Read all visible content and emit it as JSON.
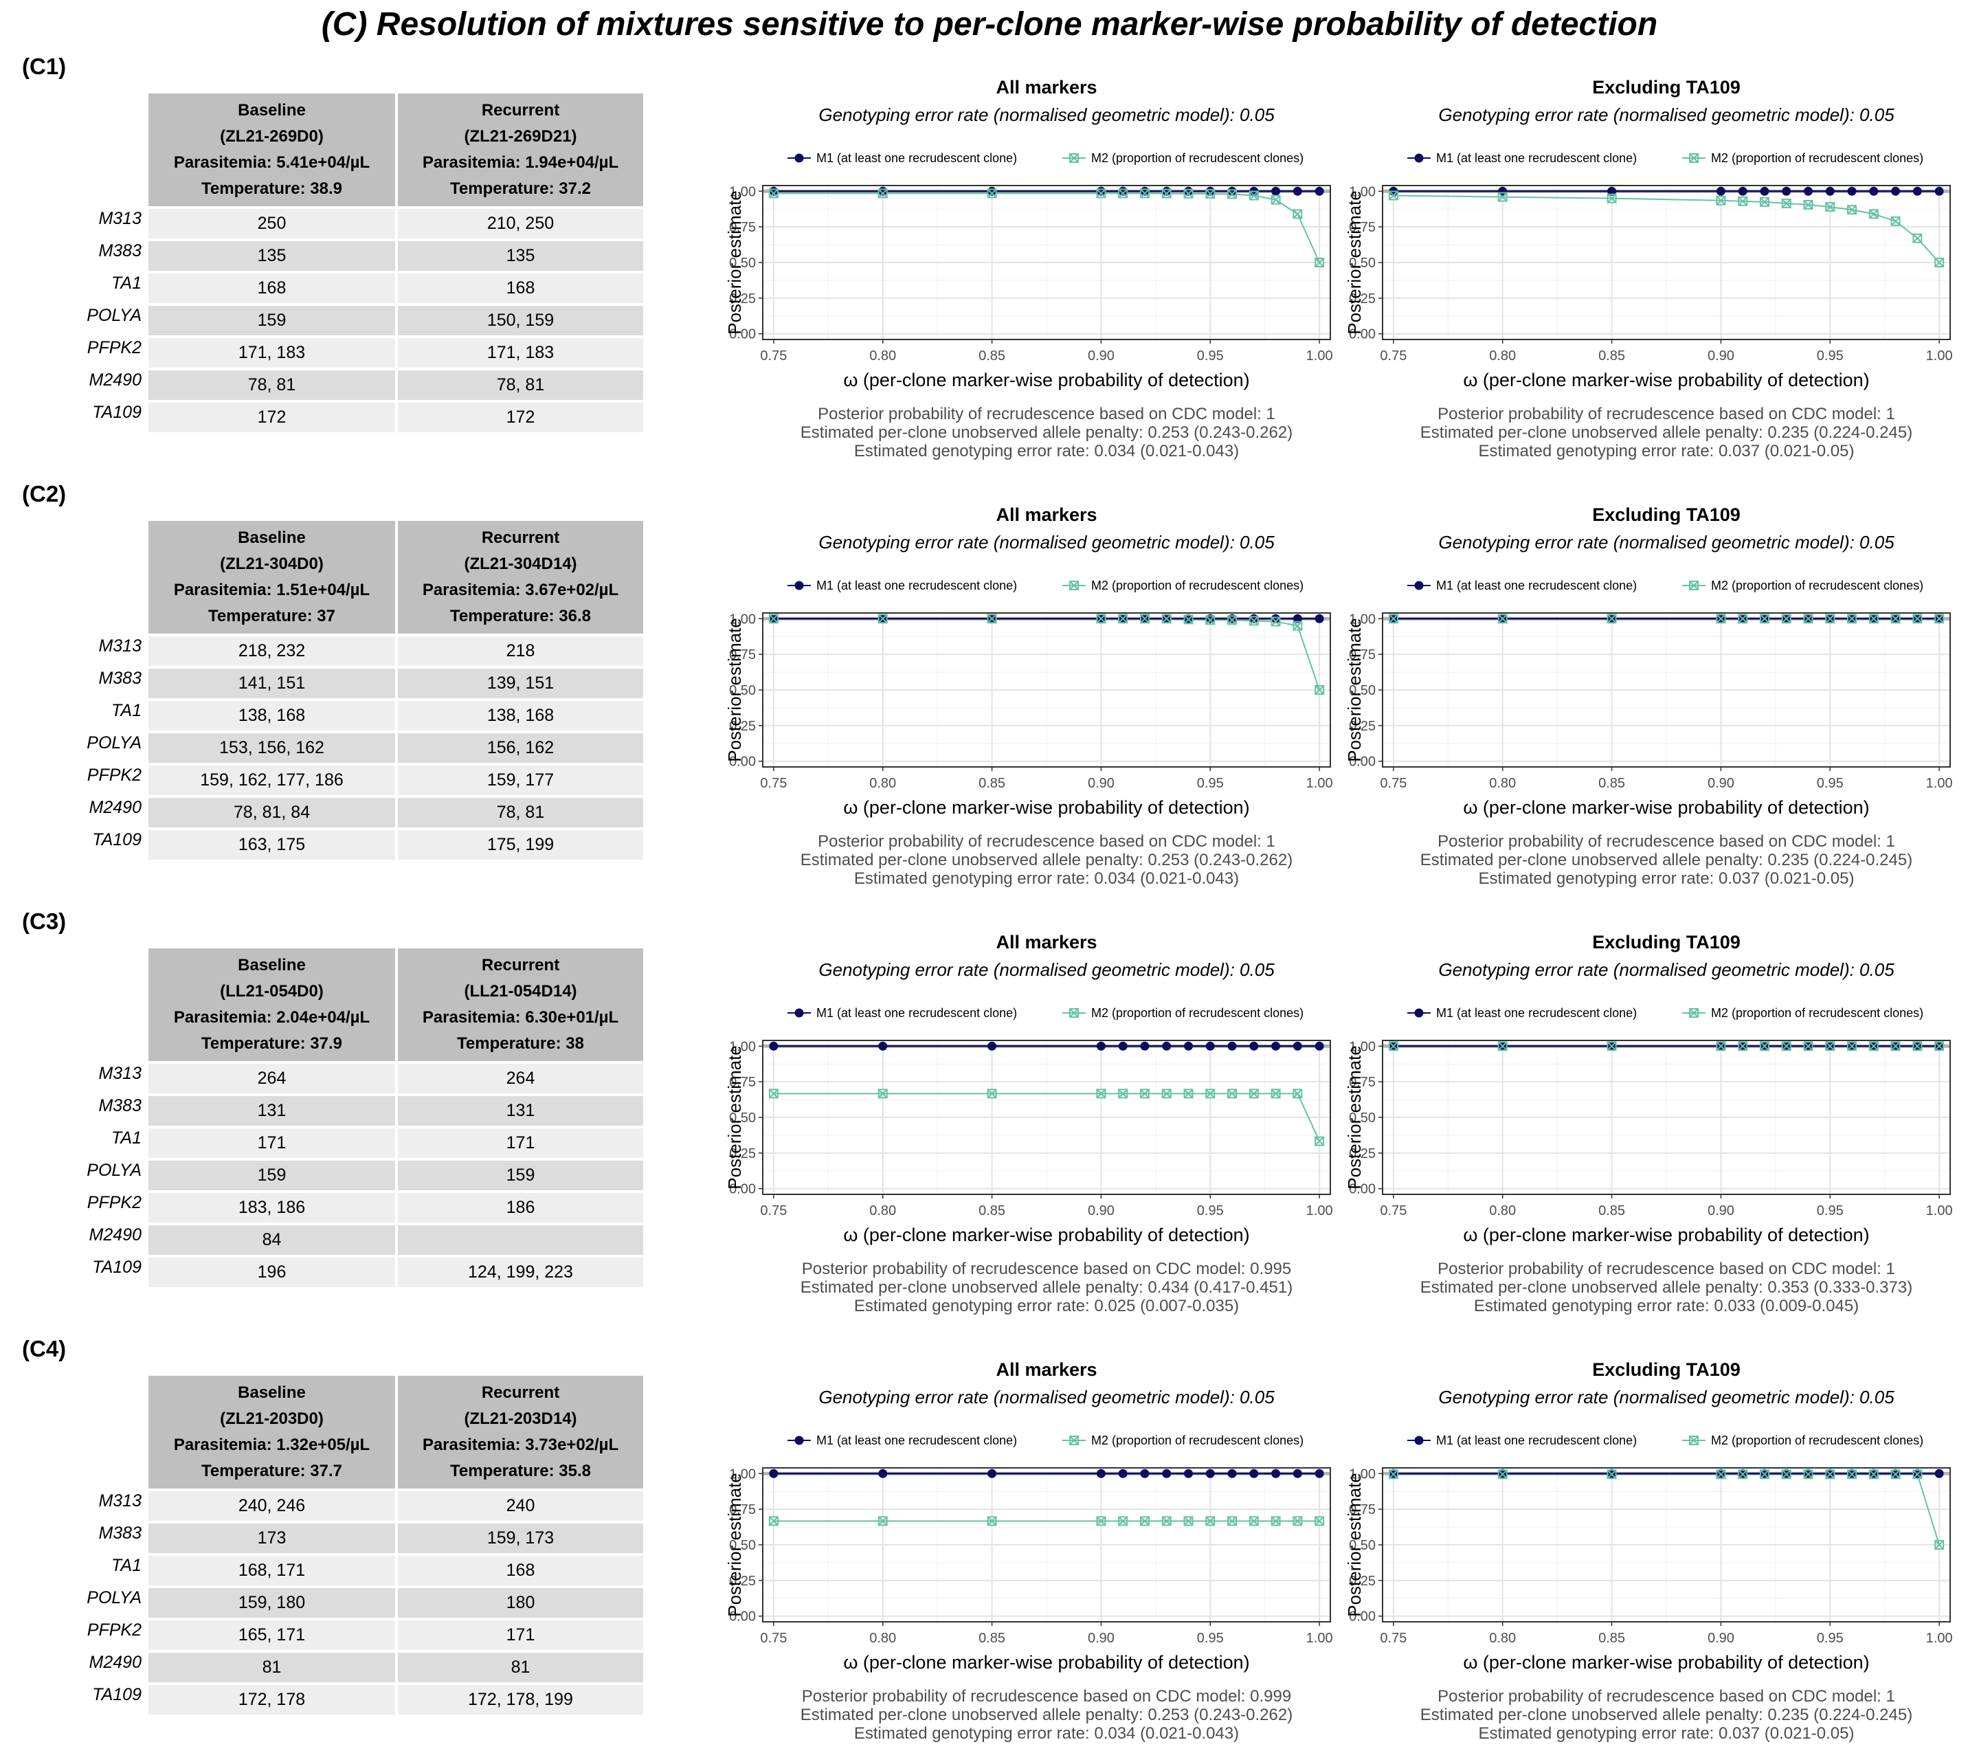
{
  "main_title": "(C) Resolution of mixtures sensitive to per-clone marker-wise probability of detection",
  "legend": {
    "m1": "M1 (at least one recrudescent clone)",
    "m2": "M2 (proportion of recrudescent clones)"
  },
  "colors": {
    "m1": "#0d0b60",
    "m2": "#66c2a5",
    "hline": "#b3b3b3"
  },
  "axis": {
    "xlabel": "ω (per-clone marker-wise probability of detection)",
    "ylabel": "Posterior estimate",
    "xticks": [
      "0.75",
      "0.80",
      "0.85",
      "0.90",
      "0.95",
      "1.00"
    ],
    "yticks": [
      "0.00",
      "0.25",
      "0.50",
      "0.75",
      "1.00"
    ]
  },
  "markers": [
    "M313",
    "M383",
    "TA1",
    "POLYA",
    "PFPK2",
    "M2490",
    "TA109"
  ],
  "panels": [
    {
      "label": "(C1)",
      "baseline": {
        "lines": [
          "Baseline",
          "(ZL21-269D0)",
          "Parasitemia: 5.41e+04/µL",
          "Temperature: 38.9"
        ]
      },
      "recurrent": {
        "lines": [
          "Recurrent",
          "(ZL21-269D21)",
          "Parasitemia: 1.94e+04/µL",
          "Temperature: 37.2"
        ]
      },
      "rows": [
        [
          "250",
          "210, 250"
        ],
        [
          "135",
          "135"
        ],
        [
          "168",
          "168"
        ],
        [
          "159",
          "150, 159"
        ],
        [
          "171, 183",
          "171, 183"
        ],
        [
          "78, 81",
          "78, 81"
        ],
        [
          "172",
          "172"
        ]
      ],
      "plots": [
        {
          "title": "All markers",
          "subtitle": "Genotyping error rate (normalised geometric model): 0.05",
          "stats": [
            "Posterior probability of recrudescence based on CDC model: 1",
            "Estimated per-clone unobserved allele penalty: 0.253 (0.243-0.262)",
            "Estimated genotyping error rate: 0.034 (0.021-0.043)"
          ]
        },
        {
          "title": "Excluding TA109",
          "subtitle": "Genotyping error rate (normalised geometric model): 0.05",
          "stats": [
            "Posterior probability of recrudescence based on CDC model: 1",
            "Estimated per-clone unobserved allele penalty: 0.235 (0.224-0.245)",
            "Estimated genotyping error rate: 0.037 (0.021-0.05)"
          ]
        }
      ]
    },
    {
      "label": "(C2)",
      "baseline": {
        "lines": [
          "Baseline",
          "(ZL21-304D0)",
          "Parasitemia: 1.51e+04/µL",
          "Temperature: 37"
        ]
      },
      "recurrent": {
        "lines": [
          "Recurrent",
          "(ZL21-304D14)",
          "Parasitemia: 3.67e+02/µL",
          "Temperature: 36.8"
        ]
      },
      "rows": [
        [
          "218, 232",
          "218"
        ],
        [
          "141, 151",
          "139, 151"
        ],
        [
          "138, 168",
          "138, 168"
        ],
        [
          "153, 156, 162",
          "156, 162"
        ],
        [
          "159, 162, 177, 186",
          "159, 177"
        ],
        [
          "78, 81, 84",
          "78, 81"
        ],
        [
          "163, 175",
          "175, 199"
        ]
      ],
      "plots": [
        {
          "title": "All markers",
          "subtitle": "Genotyping error rate (normalised geometric model): 0.05",
          "stats": [
            "Posterior probability of recrudescence based on CDC model: 1",
            "Estimated per-clone unobserved allele penalty: 0.253 (0.243-0.262)",
            "Estimated genotyping error rate: 0.034 (0.021-0.043)"
          ]
        },
        {
          "title": "Excluding TA109",
          "subtitle": "Genotyping error rate (normalised geometric model): 0.05",
          "stats": [
            "Posterior probability of recrudescence based on CDC model: 1",
            "Estimated per-clone unobserved allele penalty: 0.235 (0.224-0.245)",
            "Estimated genotyping error rate: 0.037 (0.021-0.05)"
          ]
        }
      ]
    },
    {
      "label": "(C3)",
      "baseline": {
        "lines": [
          "Baseline",
          "(LL21-054D0)",
          "Parasitemia: 2.04e+04/µL",
          "Temperature: 37.9"
        ]
      },
      "recurrent": {
        "lines": [
          "Recurrent",
          "(LL21-054D14)",
          "Parasitemia: 6.30e+01/µL",
          "Temperature: 38"
        ]
      },
      "rows": [
        [
          "264",
          "264"
        ],
        [
          "131",
          "131"
        ],
        [
          "171",
          "171"
        ],
        [
          "159",
          "159"
        ],
        [
          "183, 186",
          "186"
        ],
        [
          "84",
          ""
        ],
        [
          "196",
          "124, 199, 223"
        ]
      ],
      "plots": [
        {
          "title": "All markers",
          "subtitle": "Genotyping error rate (normalised geometric model): 0.05",
          "stats": [
            "Posterior probability of recrudescence based on CDC model: 0.995",
            "Estimated per-clone unobserved allele penalty: 0.434 (0.417-0.451)",
            "Estimated genotyping error rate: 0.025 (0.007-0.035)"
          ]
        },
        {
          "title": "Excluding TA109",
          "subtitle": "Genotyping error rate (normalised geometric model): 0.05",
          "stats": [
            "Posterior probability of recrudescence based on CDC model: 1",
            "Estimated per-clone unobserved allele penalty: 0.353 (0.333-0.373)",
            "Estimated genotyping error rate: 0.033 (0.009-0.045)"
          ]
        }
      ]
    },
    {
      "label": "(C4)",
      "baseline": {
        "lines": [
          "Baseline",
          "(ZL21-203D0)",
          "Parasitemia: 1.32e+05/µL",
          "Temperature: 37.7"
        ]
      },
      "recurrent": {
        "lines": [
          "Recurrent",
          "(ZL21-203D14)",
          "Parasitemia: 3.73e+02/µL",
          "Temperature: 35.8"
        ]
      },
      "rows": [
        [
          "240, 246",
          "240"
        ],
        [
          "173",
          "159, 173"
        ],
        [
          "168, 171",
          "168"
        ],
        [
          "159, 180",
          "180"
        ],
        [
          "165, 171",
          "171"
        ],
        [
          "81",
          "81"
        ],
        [
          "172, 178",
          "172, 178, 199"
        ]
      ],
      "plots": [
        {
          "title": "All markers",
          "subtitle": "Genotyping error rate (normalised geometric model): 0.05",
          "stats": [
            "Posterior probability of recrudescence based on CDC model: 0.999",
            "Estimated per-clone unobserved allele penalty: 0.253 (0.243-0.262)",
            "Estimated genotyping error rate: 0.034 (0.021-0.043)"
          ]
        },
        {
          "title": "Excluding TA109",
          "subtitle": "Genotyping error rate (normalised geometric model): 0.05",
          "stats": [
            "Posterior probability of recrudescence based on CDC model: 1",
            "Estimated per-clone unobserved allele penalty: 0.235 (0.224-0.245)",
            "Estimated genotyping error rate: 0.037 (0.021-0.05)"
          ]
        }
      ]
    }
  ],
  "chart_data": [
    {
      "panel": "C1",
      "title": "All markers",
      "type": "line",
      "xlim": [
        0.75,
        1.0
      ],
      "ylim": [
        0,
        1
      ],
      "x": [
        0.75,
        0.8,
        0.85,
        0.9,
        0.91,
        0.92,
        0.93,
        0.94,
        0.95,
        0.96,
        0.97,
        0.98,
        0.99,
        1.0
      ],
      "series": [
        {
          "name": "M1 (at least one recrudescent clone)",
          "values": [
            1,
            1,
            1,
            1,
            1,
            1,
            1,
            1,
            1,
            1,
            1,
            1,
            1,
            1
          ]
        },
        {
          "name": "M2 (proportion of recrudescent clones)",
          "values": [
            0.985,
            0.985,
            0.985,
            0.985,
            0.985,
            0.985,
            0.984,
            0.983,
            0.982,
            0.98,
            0.97,
            0.94,
            0.84,
            0.5
          ]
        }
      ]
    },
    {
      "panel": "C1",
      "title": "Excluding TA109",
      "type": "line",
      "xlim": [
        0.75,
        1.0
      ],
      "ylim": [
        0,
        1
      ],
      "x": [
        0.75,
        0.8,
        0.85,
        0.9,
        0.91,
        0.92,
        0.93,
        0.94,
        0.95,
        0.96,
        0.97,
        0.98,
        0.99,
        1.0
      ],
      "series": [
        {
          "name": "M1 (at least one recrudescent clone)",
          "values": [
            1,
            1,
            1,
            1,
            1,
            1,
            1,
            1,
            1,
            1,
            1,
            1,
            1,
            1
          ]
        },
        {
          "name": "M2 (proportion of recrudescent clones)",
          "values": [
            0.97,
            0.96,
            0.95,
            0.935,
            0.93,
            0.925,
            0.915,
            0.905,
            0.89,
            0.87,
            0.84,
            0.79,
            0.67,
            0.5
          ]
        }
      ]
    },
    {
      "panel": "C2",
      "title": "All markers",
      "type": "line",
      "xlim": [
        0.75,
        1.0
      ],
      "ylim": [
        0,
        1
      ],
      "x": [
        0.75,
        0.8,
        0.85,
        0.9,
        0.91,
        0.92,
        0.93,
        0.94,
        0.95,
        0.96,
        0.97,
        0.98,
        0.99,
        1.0
      ],
      "series": [
        {
          "name": "M1 (at least one recrudescent clone)",
          "values": [
            1,
            1,
            1,
            1,
            1,
            1,
            1,
            1,
            1,
            1,
            1,
            1,
            1,
            1
          ]
        },
        {
          "name": "M2 (proportion of recrudescent clones)",
          "values": [
            1,
            1,
            1,
            1,
            1,
            1,
            1,
            0.995,
            0.99,
            0.99,
            0.985,
            0.98,
            0.95,
            0.5
          ]
        }
      ]
    },
    {
      "panel": "C2",
      "title": "Excluding TA109",
      "type": "line",
      "xlim": [
        0.75,
        1.0
      ],
      "ylim": [
        0,
        1
      ],
      "x": [
        0.75,
        0.8,
        0.85,
        0.9,
        0.91,
        0.92,
        0.93,
        0.94,
        0.95,
        0.96,
        0.97,
        0.98,
        0.99,
        1.0
      ],
      "series": [
        {
          "name": "M1 (at least one recrudescent clone)",
          "values": [
            1,
            1,
            1,
            1,
            1,
            1,
            1,
            1,
            1,
            1,
            1,
            1,
            1,
            1
          ]
        },
        {
          "name": "M2 (proportion of recrudescent clones)",
          "values": [
            1,
            1,
            1,
            1,
            1,
            1,
            1,
            1,
            1,
            1,
            1,
            1,
            1,
            1
          ]
        }
      ]
    },
    {
      "panel": "C3",
      "title": "All markers",
      "type": "line",
      "xlim": [
        0.75,
        1.0
      ],
      "ylim": [
        0,
        1
      ],
      "x": [
        0.75,
        0.8,
        0.85,
        0.9,
        0.91,
        0.92,
        0.93,
        0.94,
        0.95,
        0.96,
        0.97,
        0.98,
        0.99,
        1.0
      ],
      "series": [
        {
          "name": "M1 (at least one recrudescent clone)",
          "values": [
            1,
            1,
            1,
            1,
            1,
            1,
            1,
            1,
            1,
            1,
            1,
            1,
            1,
            1
          ]
        },
        {
          "name": "M2 (proportion of recrudescent clones)",
          "values": [
            0.667,
            0.667,
            0.667,
            0.667,
            0.667,
            0.667,
            0.667,
            0.667,
            0.667,
            0.667,
            0.667,
            0.667,
            0.667,
            0.333
          ]
        }
      ]
    },
    {
      "panel": "C3",
      "title": "Excluding TA109",
      "type": "line",
      "xlim": [
        0.75,
        1.0
      ],
      "ylim": [
        0,
        1
      ],
      "x": [
        0.75,
        0.8,
        0.85,
        0.9,
        0.91,
        0.92,
        0.93,
        0.94,
        0.95,
        0.96,
        0.97,
        0.98,
        0.99,
        1.0
      ],
      "series": [
        {
          "name": "M1 (at least one recrudescent clone)",
          "values": [
            1,
            1,
            1,
            1,
            1,
            1,
            1,
            1,
            1,
            1,
            1,
            1,
            1,
            1
          ]
        },
        {
          "name": "M2 (proportion of recrudescent clones)",
          "values": [
            1,
            1,
            1,
            1,
            1,
            1,
            1,
            1,
            1,
            1,
            1,
            1,
            1,
            1
          ]
        }
      ]
    },
    {
      "panel": "C4",
      "title": "All markers",
      "type": "line",
      "xlim": [
        0.75,
        1.0
      ],
      "ylim": [
        0,
        1
      ],
      "x": [
        0.75,
        0.8,
        0.85,
        0.9,
        0.91,
        0.92,
        0.93,
        0.94,
        0.95,
        0.96,
        0.97,
        0.98,
        0.99,
        1.0
      ],
      "series": [
        {
          "name": "M1 (at least one recrudescent clone)",
          "values": [
            1,
            1,
            1,
            1,
            1,
            1,
            1,
            1,
            1,
            1,
            1,
            1,
            1,
            1
          ]
        },
        {
          "name": "M2 (proportion of recrudescent clones)",
          "values": [
            0.667,
            0.667,
            0.667,
            0.667,
            0.667,
            0.667,
            0.667,
            0.667,
            0.667,
            0.667,
            0.667,
            0.667,
            0.667,
            0.667
          ]
        }
      ]
    },
    {
      "panel": "C4",
      "title": "Excluding TA109",
      "type": "line",
      "xlim": [
        0.75,
        1.0
      ],
      "ylim": [
        0,
        1
      ],
      "x": [
        0.75,
        0.8,
        0.85,
        0.9,
        0.91,
        0.92,
        0.93,
        0.94,
        0.95,
        0.96,
        0.97,
        0.98,
        0.99,
        1.0
      ],
      "series": [
        {
          "name": "M1 (at least one recrudescent clone)",
          "values": [
            1,
            1,
            1,
            1,
            1,
            1,
            1,
            1,
            1,
            1,
            1,
            1,
            1,
            1
          ]
        },
        {
          "name": "M2 (proportion of recrudescent clones)",
          "values": [
            0.995,
            0.995,
            0.995,
            0.995,
            0.995,
            0.995,
            0.995,
            0.995,
            0.995,
            0.995,
            0.995,
            0.995,
            0.995,
            0.5
          ]
        }
      ]
    }
  ]
}
